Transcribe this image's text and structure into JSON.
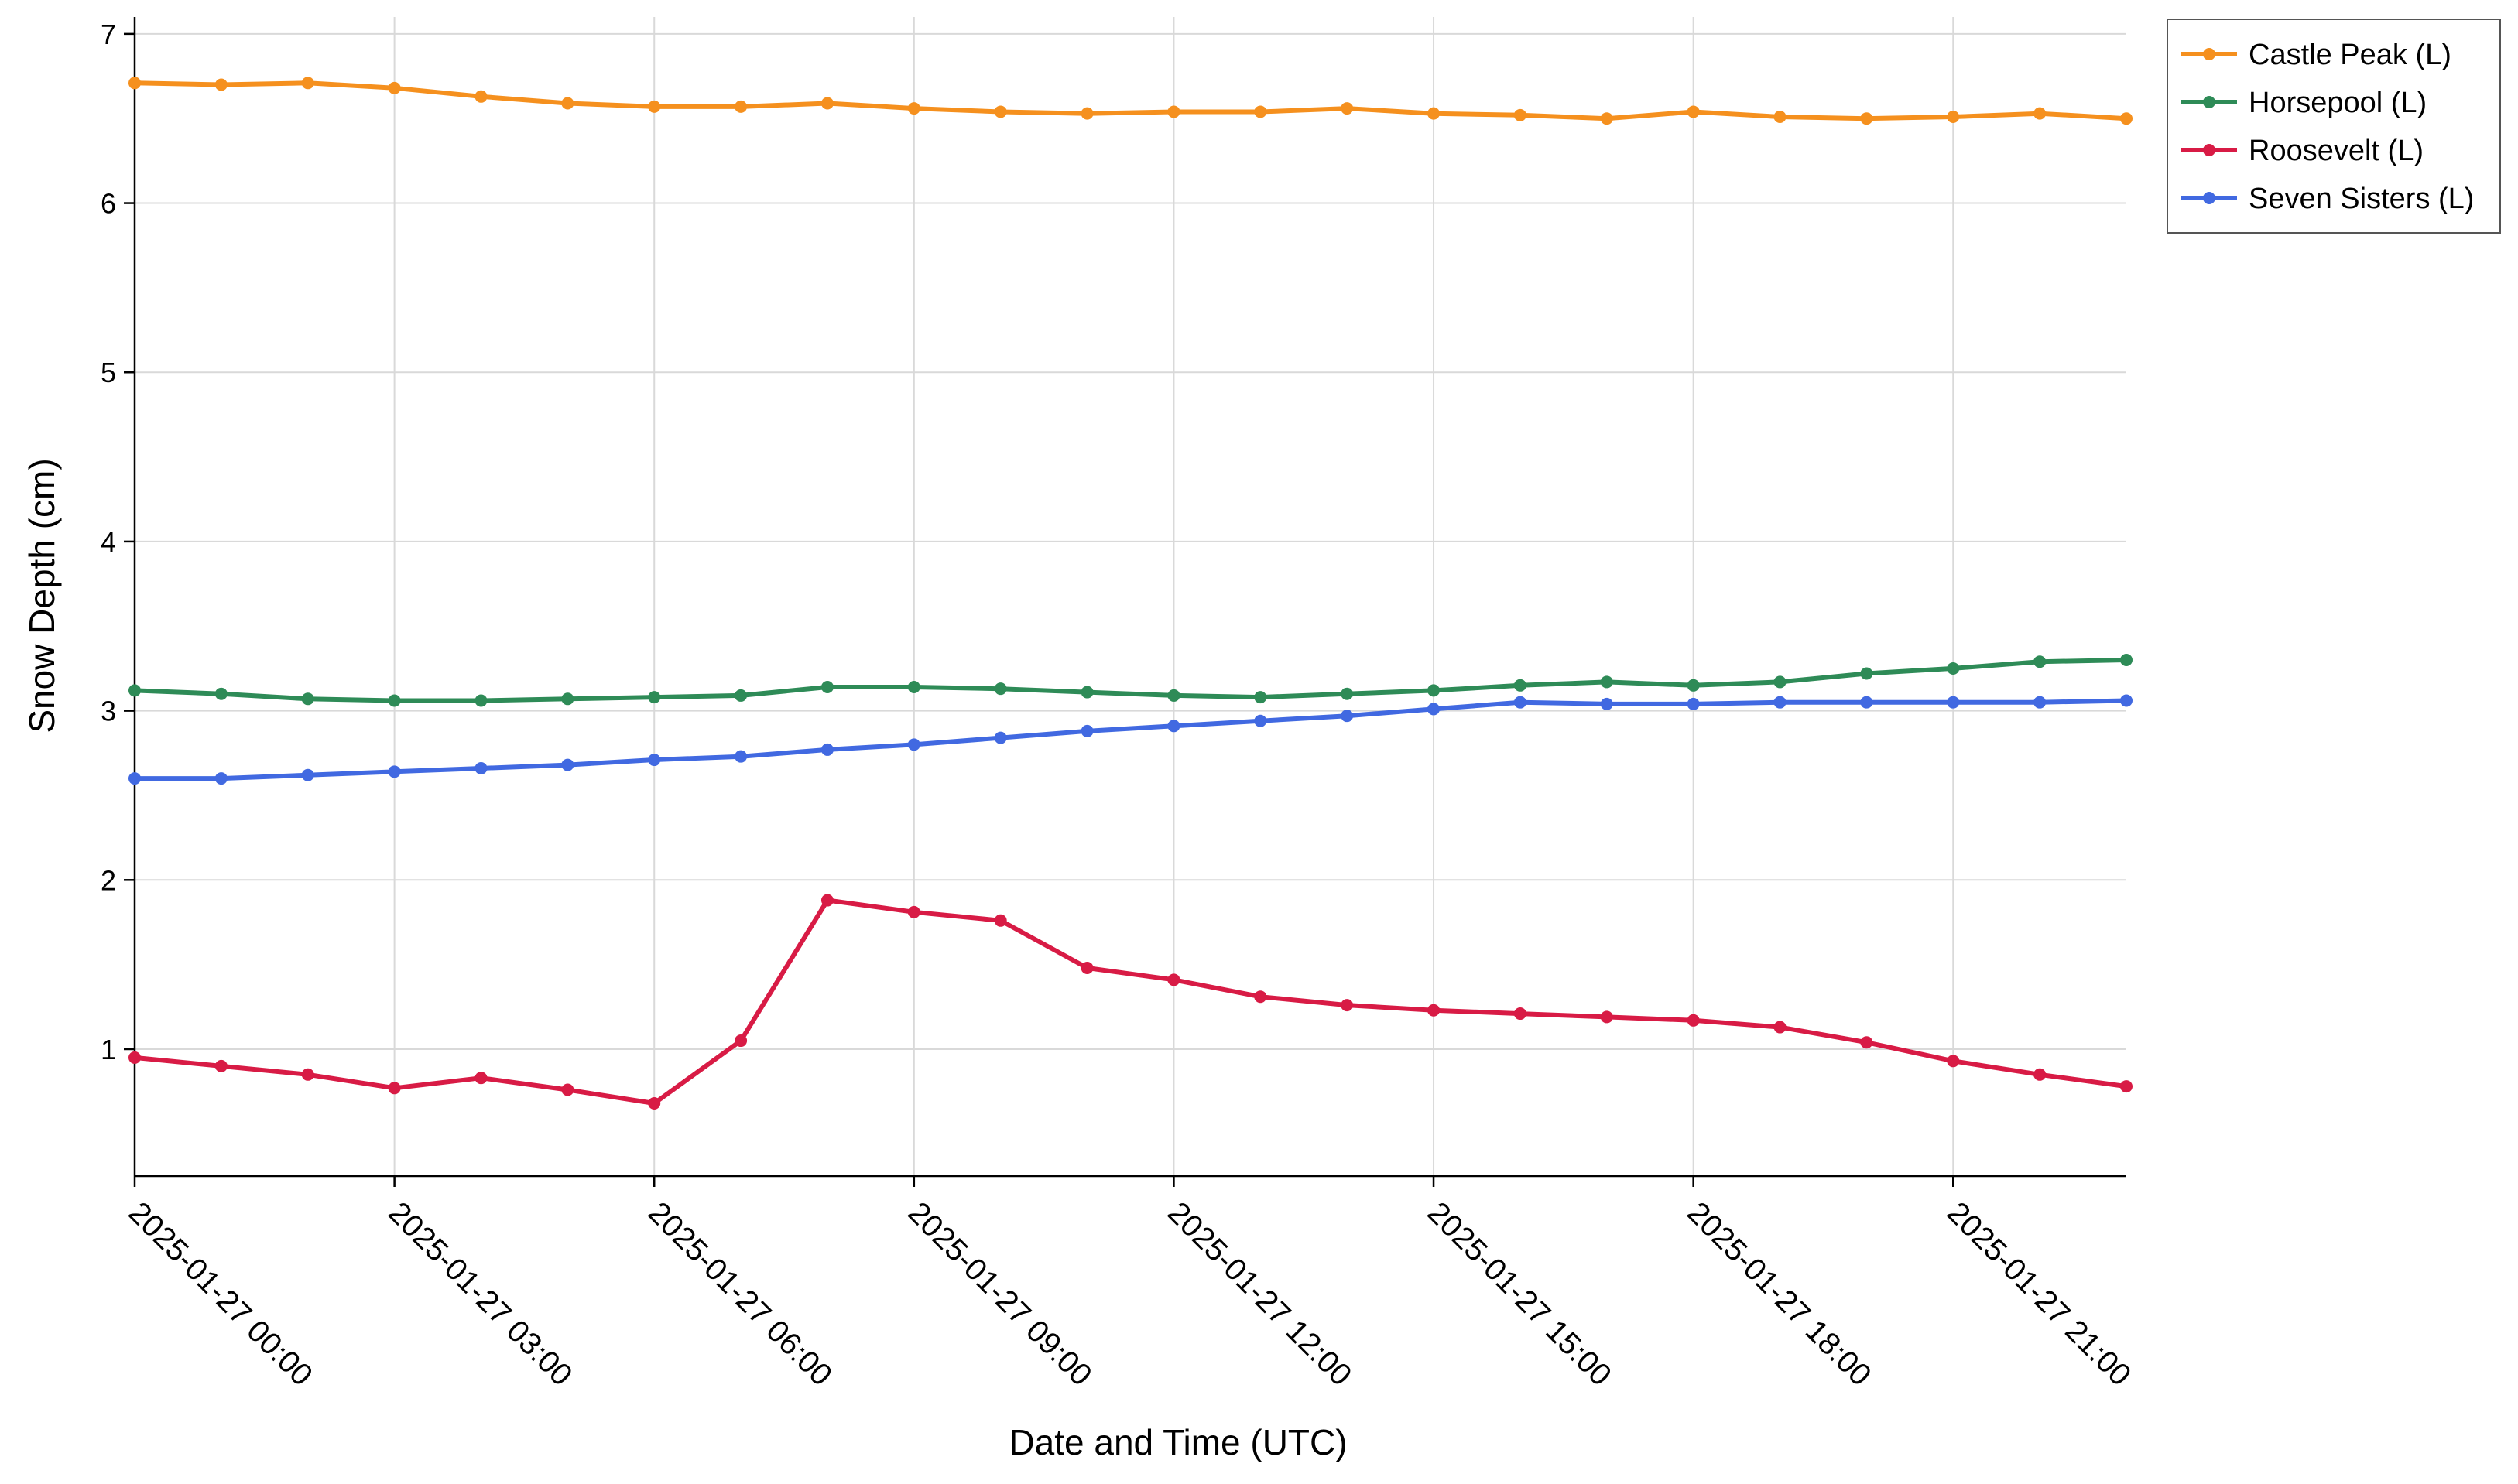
{
  "chart_data": {
    "type": "line",
    "title": "",
    "xlabel": "Date and Time (UTC)",
    "ylabel": "Snow Depth (cm)",
    "ylim": [
      0.25,
      7.1
    ],
    "grid": true,
    "legend_position": "top-right-outside",
    "x": [
      "2025-01-27 00:00",
      "2025-01-27 01:00",
      "2025-01-27 02:00",
      "2025-01-27 03:00",
      "2025-01-27 04:00",
      "2025-01-27 05:00",
      "2025-01-27 06:00",
      "2025-01-27 07:00",
      "2025-01-27 08:00",
      "2025-01-27 09:00",
      "2025-01-27 10:00",
      "2025-01-27 11:00",
      "2025-01-27 12:00",
      "2025-01-27 13:00",
      "2025-01-27 14:00",
      "2025-01-27 15:00",
      "2025-01-27 16:00",
      "2025-01-27 17:00",
      "2025-01-27 18:00",
      "2025-01-27 19:00",
      "2025-01-27 20:00",
      "2025-01-27 21:00",
      "2025-01-27 22:00",
      "2025-01-27 23:00"
    ],
    "x_ticks": [
      "2025-01-27 00:00",
      "2025-01-27 03:00",
      "2025-01-27 06:00",
      "2025-01-27 09:00",
      "2025-01-27 12:00",
      "2025-01-27 15:00",
      "2025-01-27 18:00",
      "2025-01-27 21:00"
    ],
    "y_ticks": [
      "1",
      "2",
      "3",
      "4",
      "5",
      "6",
      "7"
    ],
    "series": [
      {
        "name": "Castle Peak (L)",
        "color": "#f5901e",
        "values": [
          6.71,
          6.7,
          6.71,
          6.68,
          6.63,
          6.59,
          6.57,
          6.57,
          6.59,
          6.56,
          6.54,
          6.53,
          6.54,
          6.54,
          6.56,
          6.53,
          6.52,
          6.5,
          6.54,
          6.51,
          6.5,
          6.51,
          6.53,
          6.5
        ]
      },
      {
        "name": "Horsepool (L)",
        "color": "#2e8b57",
        "values": [
          3.12,
          3.1,
          3.07,
          3.06,
          3.06,
          3.07,
          3.08,
          3.09,
          3.14,
          3.14,
          3.13,
          3.11,
          3.09,
          3.08,
          3.1,
          3.12,
          3.15,
          3.17,
          3.15,
          3.17,
          3.22,
          3.25,
          3.29,
          3.3
        ]
      },
      {
        "name": "Roosevelt (L)",
        "color": "#d81b45",
        "values": [
          0.95,
          0.9,
          0.85,
          0.77,
          0.83,
          0.76,
          0.68,
          1.05,
          1.88,
          1.81,
          1.76,
          1.48,
          1.41,
          1.31,
          1.26,
          1.23,
          1.21,
          1.19,
          1.17,
          1.13,
          1.04,
          0.93,
          0.85,
          0.78
        ]
      },
      {
        "name": "Seven Sisters (L)",
        "color": "#4169e1",
        "values": [
          2.6,
          2.6,
          2.62,
          2.64,
          2.66,
          2.68,
          2.71,
          2.73,
          2.77,
          2.8,
          2.84,
          2.88,
          2.91,
          2.94,
          2.97,
          3.01,
          3.05,
          3.04,
          3.04,
          3.05,
          3.05,
          3.05,
          3.05,
          3.06
        ]
      }
    ]
  }
}
